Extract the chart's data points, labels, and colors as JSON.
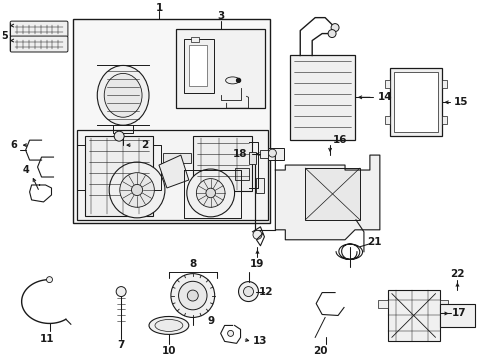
{
  "bg_color": "#ffffff",
  "lc": "#1a1a1a",
  "fc": "#ffffff",
  "fc_light": "#f5f5f5",
  "fig_width": 4.89,
  "fig_height": 3.6,
  "dpi": 100,
  "lw_main": 0.75,
  "lw_thin": 0.45,
  "label_fs": 7.0
}
